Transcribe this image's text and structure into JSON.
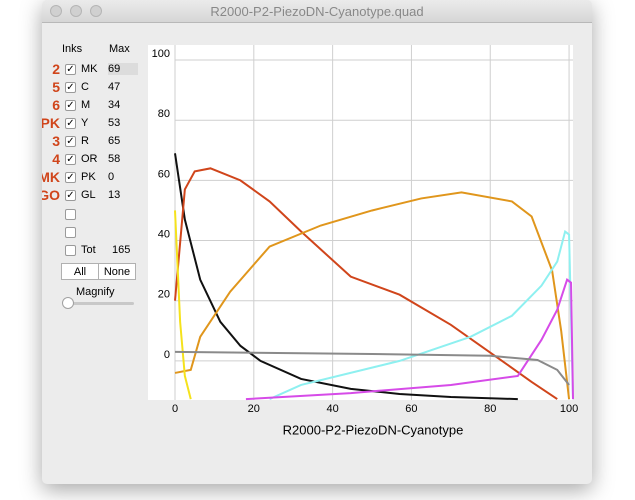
{
  "window": {
    "title": "R2000-P2-PiezoDN-Cyanotype.quad"
  },
  "inks": {
    "header_inks": "Inks",
    "header_max": "Max",
    "rows": [
      {
        "channel": "2",
        "name": "MK",
        "max": 69
      },
      {
        "channel": "5",
        "name": "C",
        "max": 47
      },
      {
        "channel": "6",
        "name": "M",
        "max": 34
      },
      {
        "channel": "PK",
        "name": "Y",
        "max": 53
      },
      {
        "channel": "3",
        "name": "R",
        "max": 65
      },
      {
        "channel": "4",
        "name": "OR",
        "max": 58
      },
      {
        "channel": "MK",
        "name": "PK",
        "max": 0
      },
      {
        "channel": "GO",
        "name": "GL",
        "max": 13
      }
    ],
    "total": {
      "label": "Tot",
      "value": 165
    },
    "buttons": [
      "All",
      "None"
    ],
    "magnify": "Magnify"
  },
  "chart_data": {
    "type": "line",
    "xlabel": "R2000-P2-PiezoDN-Cyanotype",
    "xlim": [
      0,
      101
    ],
    "ylim": [
      -13,
      105
    ],
    "xticks": [
      0,
      20,
      40,
      60,
      80,
      100
    ],
    "yticks": [
      0,
      20,
      40,
      60,
      80,
      100
    ],
    "grid": true,
    "series": [
      {
        "color": "#111111",
        "x": [
          0,
          2.5,
          6.4,
          11.5,
          16.6,
          21.7,
          32,
          44.6,
          57,
          70,
          87
        ],
        "values": [
          69,
          47,
          27,
          13,
          5,
          0,
          -6,
          -9.3,
          -11,
          -12,
          -12.7
        ]
      },
      {
        "color": "#d0451b",
        "x": [
          0,
          2.5,
          5,
          9,
          16.6,
          24,
          32,
          44.6,
          57,
          70,
          83,
          90.5,
          97
        ],
        "values": [
          20,
          57,
          63,
          64,
          60,
          53,
          43,
          28,
          22,
          12,
          0,
          -7,
          -12.7
        ]
      },
      {
        "color": "#e0961c",
        "x": [
          0,
          4,
          6.4,
          14,
          24,
          37,
          50,
          62.5,
          72.7,
          85.5,
          90.5,
          95.7,
          98,
          100
        ],
        "values": [
          -4,
          -3,
          8,
          23,
          38,
          45,
          50,
          54,
          56,
          53,
          48,
          30,
          10,
          -12.7
        ]
      },
      {
        "color": "#f5e21c",
        "x": [
          0,
          1.3,
          2.5,
          4
        ],
        "values": [
          50,
          13,
          -5,
          -12.7
        ]
      },
      {
        "color": "#8ef0f0",
        "x": [
          24,
          32,
          57,
          75,
          85.5,
          93,
          97,
          99,
          100,
          101
        ],
        "values": [
          -12.7,
          -8,
          0,
          8,
          15,
          25,
          33,
          43,
          42,
          -12.7
        ]
      },
      {
        "color": "#d64be8",
        "x": [
          18,
          44.6,
          70,
          87,
          93,
          97,
          99.5,
          100.5,
          101
        ],
        "values": [
          -12.7,
          -10.7,
          -8,
          -5,
          7,
          17,
          27,
          26,
          -12.7
        ]
      },
      {
        "color": "#8a8a8a",
        "x": [
          0,
          50,
          80,
          92,
          97,
          100
        ],
        "values": [
          3,
          2.3,
          1.7,
          0.3,
          -3,
          -8
        ]
      }
    ]
  }
}
